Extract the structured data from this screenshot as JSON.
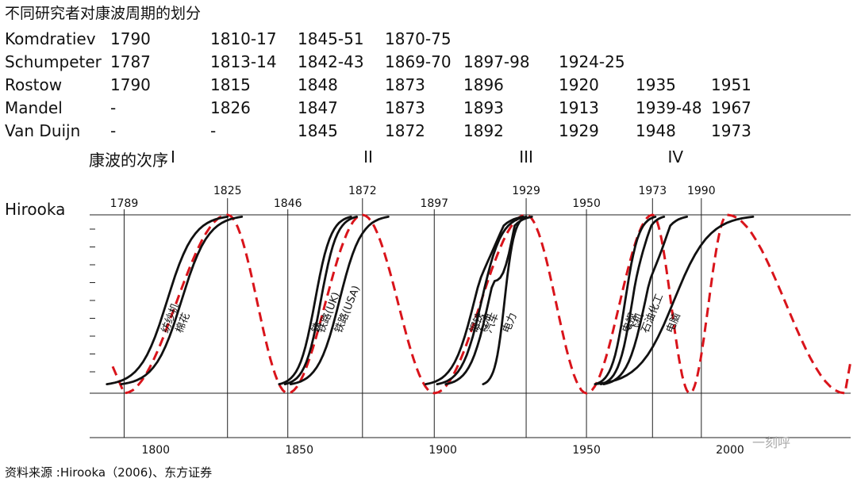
{
  "title": "不同研究者对康波周期的划分",
  "researchers": [
    {
      "name": "Komdratiev",
      "dates": [
        "1790",
        "1810-17",
        "1845-51",
        "1870-75",
        "",
        "",
        "",
        ""
      ]
    },
    {
      "name": "Schumpeter",
      "dates": [
        "1787",
        "1813-14",
        "1842-43",
        "1869-70",
        "1897-98",
        "1924-25",
        "",
        ""
      ]
    },
    {
      "name": "Rostow",
      "dates": [
        "1790",
        "1815",
        "1848",
        "1873",
        "1896",
        "1920",
        "1935",
        "1951"
      ]
    },
    {
      "name": "Mandel",
      "dates": [
        "-",
        "1826",
        "1847",
        "1873",
        "1893",
        "1913",
        "1939-48",
        "1967"
      ]
    },
    {
      "name": "Van Duijn",
      "dates": [
        "-",
        "-",
        "1845",
        "1872",
        "1892",
        "1929",
        "1948",
        "1973"
      ]
    }
  ],
  "wave_order_label": "康波的次序",
  "hirooka_label": "Hirooka",
  "source": "资料来源 :Hirooka（2006)、东方证券",
  "watermark": "一刻呼",
  "chart_data": {
    "type": "line",
    "xlim": [
      1777,
      2042
    ],
    "x_ticks": [
      1800,
      1850,
      1900,
      1950
    ],
    "x_tick_labels": [
      "1800",
      "1850",
      "1900",
      "1950"
    ],
    "extra_tick_label": "2000",
    "waves": [
      {
        "label": "I",
        "center_year": 1806
      },
      {
        "label": "II",
        "center_year": 1874
      },
      {
        "label": "III",
        "center_year": 1929
      },
      {
        "label": "IV",
        "center_year": 1981
      }
    ],
    "markers": [
      {
        "year": 1789,
        "label": "1789",
        "position": "low"
      },
      {
        "year": 1825,
        "label": "1825",
        "position": "high"
      },
      {
        "year": 1846,
        "label": "1846",
        "position": "low"
      },
      {
        "year": 1872,
        "label": "1872",
        "position": "high"
      },
      {
        "year": 1897,
        "label": "1897",
        "position": "low"
      },
      {
        "year": 1929,
        "label": "1929",
        "position": "high"
      },
      {
        "year": 1950,
        "label": "1950",
        "position": "low"
      },
      {
        "year": 1973,
        "label": "1973",
        "position": "high"
      },
      {
        "year": 1990,
        "label": "1990",
        "position": "high"
      }
    ],
    "red_cycle": {
      "name": "康波 (dashed)",
      "color": "#d9141b",
      "troughs": [
        1789,
        1846,
        1897,
        1950,
        1986,
        2040
      ],
      "peaks": [
        1825,
        1872,
        1929,
        1973,
        1999
      ]
    },
    "s_curves": [
      {
        "label": "纺纱机",
        "start": 1783,
        "end": 1825,
        "dip": 0
      },
      {
        "label": "棉花",
        "start": 1788,
        "end": 1830,
        "dip": 0
      },
      {
        "label": "铁",
        "start": 1843,
        "end": 1868,
        "dip": 0
      },
      {
        "label": "铁路(UK)",
        "start": 1845,
        "end": 1870,
        "dip": 0
      },
      {
        "label": "铁路(USA)",
        "start": 1847,
        "end": 1881,
        "dip": 0
      },
      {
        "label": "钢铁",
        "start": 1894,
        "end": 1928,
        "dip": 0.05
      },
      {
        "label": "石油",
        "start": 1898,
        "end": 1929,
        "dip": 0
      },
      {
        "label": "汽车",
        "start": 1901,
        "end": 1931,
        "dip": 0.15
      },
      {
        "label": "电力",
        "start": 1914,
        "end": 1929,
        "dip": 0
      },
      {
        "label": "电视",
        "start": 1953,
        "end": 1974,
        "dip": 0
      },
      {
        "label": "飞机",
        "start": 1955,
        "end": 1977,
        "dip": 0.03
      },
      {
        "label": "石油化工",
        "start": 1956,
        "end": 1985,
        "dip": 0.06
      },
      {
        "label": "电脑",
        "start": 1953,
        "end": 2008,
        "dip": 0
      }
    ]
  }
}
